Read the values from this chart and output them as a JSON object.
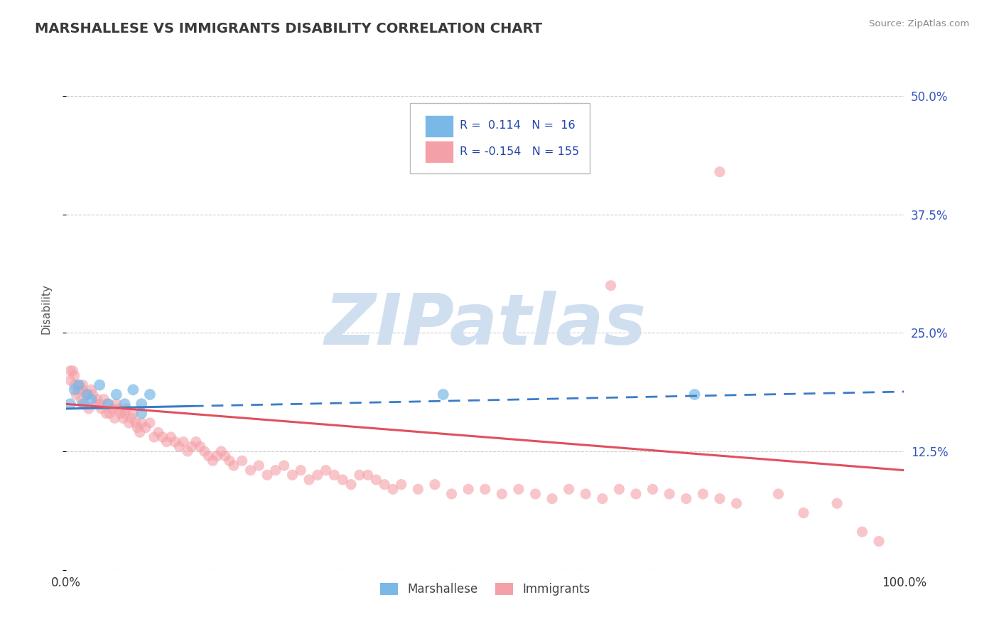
{
  "title": "MARSHALLESE VS IMMIGRANTS DISABILITY CORRELATION CHART",
  "source": "Source: ZipAtlas.com",
  "ylabel": "Disability",
  "xlim": [
    0.0,
    1.0
  ],
  "ylim": [
    0.0,
    0.55
  ],
  "yticks": [
    0.0,
    0.125,
    0.25,
    0.375,
    0.5
  ],
  "ytick_labels": [
    "",
    "12.5%",
    "25.0%",
    "37.5%",
    "50.0%"
  ],
  "xticks": [
    0.0,
    1.0
  ],
  "xtick_labels": [
    "0.0%",
    "100.0%"
  ],
  "grid_color": "#cccccc",
  "background_color": "#ffffff",
  "marshallese_color": "#7ab8e8",
  "immigrants_color": "#f4a0a8",
  "marshallese_line_color": "#3a7cc8",
  "immigrants_line_color": "#e05060",
  "marshallese_R": 0.114,
  "marshallese_N": 16,
  "immigrants_R": -0.154,
  "immigrants_N": 155,
  "watermark": "ZIPatlas",
  "watermark_color": "#d0dff0",
  "legend_label_1": "Marshallese",
  "legend_label_2": "Immigrants",
  "marshallese_x": [
    0.005,
    0.01,
    0.015,
    0.02,
    0.025,
    0.03,
    0.04,
    0.05,
    0.06,
    0.07,
    0.08,
    0.09,
    0.09,
    0.1,
    0.45,
    0.75
  ],
  "marshallese_y": [
    0.175,
    0.19,
    0.195,
    0.175,
    0.185,
    0.18,
    0.195,
    0.175,
    0.185,
    0.175,
    0.19,
    0.175,
    0.165,
    0.185,
    0.185,
    0.185
  ],
  "immigrants_x": [
    0.005,
    0.008,
    0.01,
    0.012,
    0.015,
    0.018,
    0.02,
    0.022,
    0.025,
    0.027,
    0.03,
    0.032,
    0.035,
    0.037,
    0.04,
    0.042,
    0.045,
    0.048,
    0.05,
    0.052,
    0.055,
    0.058,
    0.06,
    0.062,
    0.065,
    0.068,
    0.07,
    0.072,
    0.075,
    0.078,
    0.08,
    0.083,
    0.085,
    0.088,
    0.09,
    0.095,
    0.1,
    0.105,
    0.11,
    0.115,
    0.12,
    0.125,
    0.13,
    0.135,
    0.14,
    0.145,
    0.15,
    0.155,
    0.16,
    0.165,
    0.17,
    0.175,
    0.18,
    0.185,
    0.19,
    0.195,
    0.2,
    0.21,
    0.22,
    0.23,
    0.24,
    0.25,
    0.26,
    0.27,
    0.28,
    0.29,
    0.3,
    0.31,
    0.32,
    0.33,
    0.34,
    0.35,
    0.36,
    0.37,
    0.38,
    0.39,
    0.4,
    0.42,
    0.44,
    0.46,
    0.48,
    0.5,
    0.52,
    0.54,
    0.56,
    0.58,
    0.6,
    0.62,
    0.64,
    0.66,
    0.68,
    0.7,
    0.72,
    0.74,
    0.76,
    0.78,
    0.8,
    0.85,
    0.88,
    0.92,
    0.95,
    0.97
  ],
  "immigrants_y": [
    0.2,
    0.21,
    0.195,
    0.185,
    0.19,
    0.18,
    0.195,
    0.175,
    0.185,
    0.17,
    0.19,
    0.185,
    0.175,
    0.18,
    0.175,
    0.17,
    0.18,
    0.165,
    0.175,
    0.165,
    0.17,
    0.16,
    0.175,
    0.17,
    0.165,
    0.16,
    0.165,
    0.17,
    0.155,
    0.16,
    0.165,
    0.155,
    0.15,
    0.145,
    0.155,
    0.15,
    0.155,
    0.14,
    0.145,
    0.14,
    0.135,
    0.14,
    0.135,
    0.13,
    0.135,
    0.125,
    0.13,
    0.135,
    0.13,
    0.125,
    0.12,
    0.115,
    0.12,
    0.125,
    0.12,
    0.115,
    0.11,
    0.115,
    0.105,
    0.11,
    0.1,
    0.105,
    0.11,
    0.1,
    0.105,
    0.095,
    0.1,
    0.105,
    0.1,
    0.095,
    0.09,
    0.1,
    0.1,
    0.095,
    0.09,
    0.085,
    0.09,
    0.085,
    0.09,
    0.08,
    0.085,
    0.085,
    0.08,
    0.085,
    0.08,
    0.075,
    0.085,
    0.08,
    0.075,
    0.085,
    0.08,
    0.085,
    0.08,
    0.075,
    0.08,
    0.075,
    0.07,
    0.08,
    0.06,
    0.07,
    0.04,
    0.03
  ],
  "immigrants_extra_high_x": [
    0.005,
    0.01,
    0.015,
    0.02,
    0.025,
    0.65,
    0.78
  ],
  "immigrants_extra_high_y": [
    0.21,
    0.205,
    0.195,
    0.19,
    0.185,
    0.3,
    0.42
  ]
}
